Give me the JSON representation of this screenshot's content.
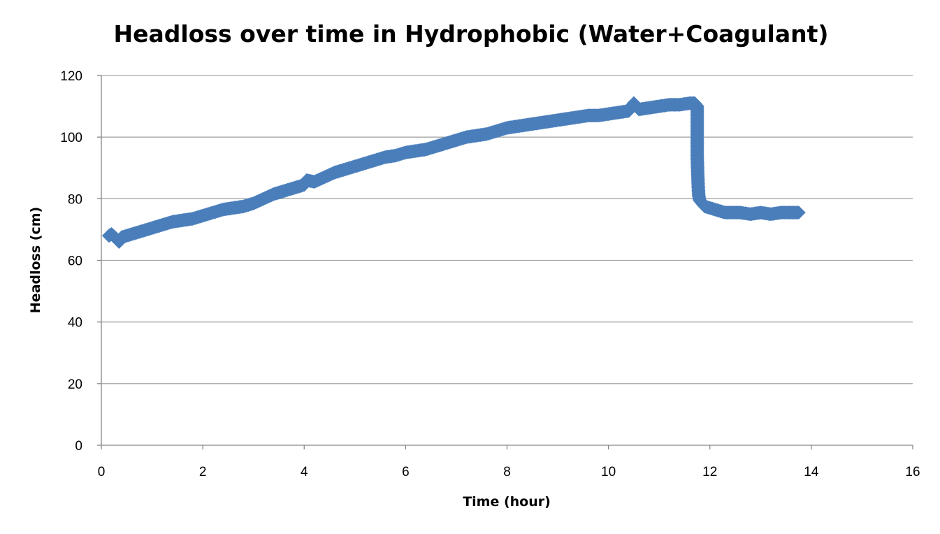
{
  "chart_data": {
    "type": "scatter",
    "title": "Headloss over time in Hydrophobic (Water+Coagulant)",
    "xlabel": "Time (hour)",
    "ylabel": "Headloss (cm)",
    "xlim": [
      0,
      16
    ],
    "ylim": [
      0,
      120
    ],
    "xticks": [
      0,
      2,
      4,
      6,
      8,
      10,
      12,
      14,
      16
    ],
    "yticks": [
      0,
      20,
      40,
      60,
      80,
      100,
      120
    ],
    "grid": true,
    "legend": "none",
    "marker": "diamond",
    "color": "#4a7ebb",
    "series": [
      {
        "x": [
          0.15,
          0.2,
          0.3,
          0.35,
          0.4,
          0.5,
          0.6,
          0.7,
          0.8,
          0.9,
          1.0,
          1.2,
          1.4,
          1.6,
          1.8,
          2.0,
          2.2,
          2.4,
          2.6,
          2.8,
          3.0,
          3.2,
          3.4,
          3.6,
          3.8,
          4.0,
          4.05,
          4.2,
          4.4,
          4.6,
          4.8,
          5.0,
          5.2,
          5.4,
          5.6,
          5.8,
          6.0,
          6.2,
          6.4,
          6.6,
          6.8,
          7.0,
          7.2,
          7.4,
          7.6,
          7.8,
          8.0,
          8.2,
          8.4,
          8.6,
          8.8,
          9.0,
          9.2,
          9.4,
          9.6,
          9.8,
          10.0,
          10.2,
          10.4,
          10.5,
          10.6,
          10.8,
          11.0,
          11.2,
          11.4,
          11.6,
          11.7,
          11.75,
          11.75,
          11.75,
          11.75,
          11.76,
          11.77,
          11.78,
          11.8,
          11.85,
          11.9,
          12.0,
          12.1,
          12.2,
          12.3,
          12.4,
          12.6,
          12.8,
          13.0,
          13.2,
          13.4,
          13.6,
          13.75
        ],
        "y": [
          68,
          68.5,
          67,
          66,
          67.5,
          68,
          68.5,
          69,
          69.5,
          70,
          70.5,
          71.5,
          72.5,
          73,
          73.5,
          74.5,
          75.5,
          76.5,
          77,
          77.5,
          78.5,
          80,
          81.5,
          82.5,
          83.5,
          84.5,
          86,
          85.5,
          87,
          88.5,
          89.5,
          90.5,
          91.5,
          92.5,
          93.5,
          94,
          95,
          95.5,
          96,
          97,
          98,
          99,
          100,
          100.5,
          101,
          102,
          103,
          103.5,
          104,
          104.5,
          105,
          105.5,
          106,
          106.5,
          107,
          107,
          107.5,
          108,
          108.5,
          111,
          109,
          109.5,
          110,
          110.5,
          110.5,
          111,
          111,
          110,
          106,
          100,
          94,
          88,
          84,
          81,
          79.5,
          78.5,
          77.5,
          77,
          76.5,
          76,
          75.5,
          75.5,
          75.5,
          75,
          75.5,
          75,
          75.5,
          75.5,
          75.5
        ]
      }
    ]
  }
}
